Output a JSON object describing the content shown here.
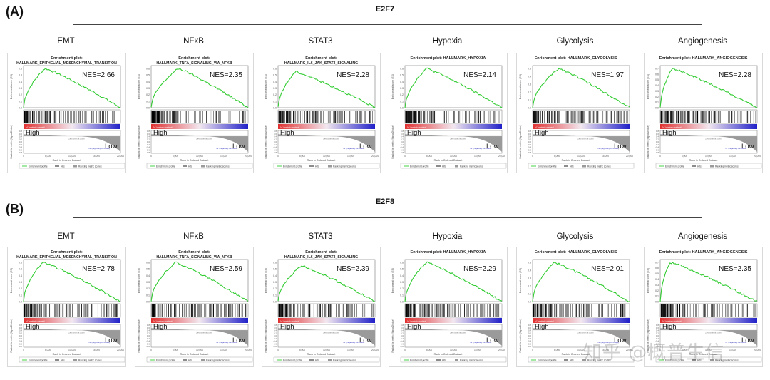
{
  "figure": {
    "watermark": "知乎 @概普生信",
    "colors": {
      "curve": "#33cc33",
      "hits": "#000000",
      "high": "#e03030",
      "low": "#2020c8",
      "metric": "#9a9a9a"
    }
  },
  "chart_data": [
    {
      "panel": "(A)",
      "gene": "E2F7",
      "type": "line",
      "plots": [
        {
          "pathway": "EMT",
          "title1": "Enrichment plot:",
          "title2": "HALLMARK_EPITHELIAL_MESENCHYMAL_TRANSITION",
          "nes": "NES=2.66",
          "peak": 0.6,
          "peak_pos": 0.22,
          "ylim": [
            0,
            0.6
          ]
        },
        {
          "pathway": "NFκB",
          "title1": "Enrichment plot:",
          "title2": "HALLMARK_TNFA_SIGNALING_VIA_NFKB",
          "nes": "NES=2.35",
          "peak": 0.6,
          "peak_pos": 0.28,
          "ylim": [
            0,
            0.6
          ]
        },
        {
          "pathway": "STAT3",
          "title1": "Enrichment plot:",
          "title2": "HALLMARK_IL6_JAK_STAT3_SIGNALING",
          "nes": "NES=2.28",
          "peak": 0.55,
          "peak_pos": 0.18,
          "ylim": [
            0,
            0.6
          ]
        },
        {
          "pathway": "Hypoxia",
          "title1": "Enrichment plot: HALLMARK_HYPOXIA",
          "title2": "",
          "nes": "NES=2.14",
          "peak": 0.6,
          "peak_pos": 0.22,
          "ylim": [
            0,
            0.6
          ]
        },
        {
          "pathway": "Glycolysis",
          "title1": "Enrichment plot: HALLMARK_GLYCOLYSIS",
          "title2": "",
          "nes": "NES=1.97",
          "peak": 0.5,
          "peak_pos": 0.27,
          "ylim": [
            0,
            0.5
          ]
        },
        {
          "pathway": "Angiogenesis",
          "title1": "Enrichment plot: HALLMARK_ANGIOGENESIS",
          "title2": "",
          "nes": "NES=2.28",
          "peak": 0.7,
          "peak_pos": 0.12,
          "ylim": [
            0,
            0.7
          ]
        }
      ]
    },
    {
      "panel": "(B)",
      "gene": "E2F8",
      "type": "line",
      "plots": [
        {
          "pathway": "EMT",
          "title1": "Enrichment plot:",
          "title2": "HALLMARK_EPITHELIAL_MESENCHYMAL_TRANSITION",
          "nes": "NES=2.78",
          "peak": 0.6,
          "peak_pos": 0.2,
          "ylim": [
            0,
            0.6
          ]
        },
        {
          "pathway": "NFκB",
          "title1": "Enrichment plot:",
          "title2": "HALLMARK_TNFA_SIGNALING_VIA_NFKB",
          "nes": "NES=2.59",
          "peak": 0.6,
          "peak_pos": 0.25,
          "ylim": [
            0,
            0.6
          ]
        },
        {
          "pathway": "STAT3",
          "title1": "Enrichment plot:",
          "title2": "HALLMARK_IL6_JAK_STAT3_SIGNALING",
          "nes": "NES=2.39",
          "peak": 0.55,
          "peak_pos": 0.24,
          "ylim": [
            0,
            0.6
          ]
        },
        {
          "pathway": "Hypoxia",
          "title1": "Enrichment plot: HALLMARK_HYPOXIA",
          "title2": "",
          "nes": "NES=2.29",
          "peak": 0.6,
          "peak_pos": 0.22,
          "ylim": [
            0,
            0.6
          ]
        },
        {
          "pathway": "Glycolysis",
          "title1": "Enrichment plot: HALLMARK_GLYCOLYSIS",
          "title2": "",
          "nes": "NES=2.01",
          "peak": 0.5,
          "peak_pos": 0.22,
          "ylim": [
            0,
            0.5
          ]
        },
        {
          "pathway": "Angiogenesis",
          "title1": "Enrichment plot: HALLMARK_ANGIOGENESIS",
          "title2": "",
          "nes": "NES=2.35",
          "peak": 0.7,
          "peak_pos": 0.1,
          "ylim": [
            0,
            0.7
          ]
        }
      ]
    }
  ],
  "common": {
    "high_label": "High",
    "low_label": "Low",
    "y_label_top": "Enrichment score (ES)",
    "y_label_bottom": "Ranked list metric (Signal2Noise)",
    "x_label": "Rank in Ordered Dataset",
    "x_ticks": [
      "0",
      "5,000",
      "10,000",
      "15,000",
      "20,000"
    ],
    "legend": [
      "Enrichment profile",
      "Hits",
      "Ranking metric scores"
    ],
    "zero_cross": "Zero cross at 10897",
    "pos_corr": "'h1' (positively correlated)",
    "neg_corr": "'h2' (negatively correlated)"
  }
}
